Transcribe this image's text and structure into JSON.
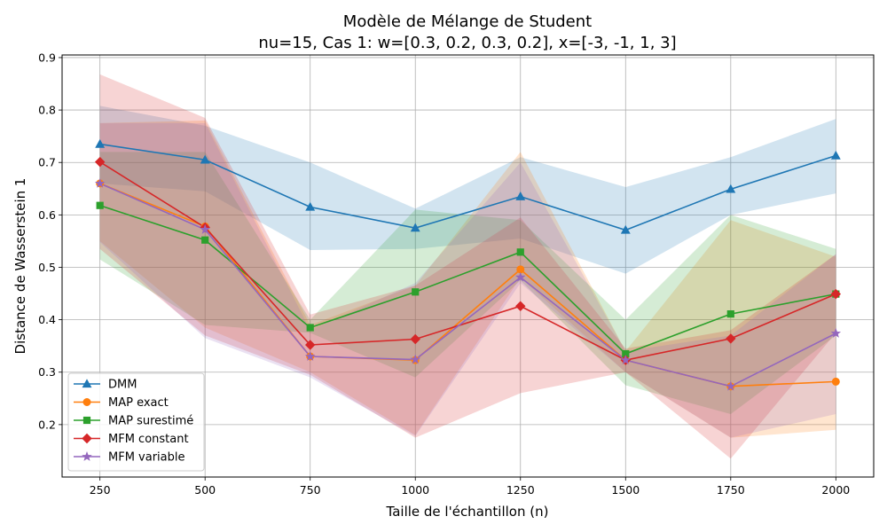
{
  "chart_data": {
    "type": "line",
    "title": "Modèle de Mélange de Student",
    "subtitle": "nu=15, Cas 1: w=[0.3, 0.2, 0.3, 0.2], x=[-3, -1, 1, 3]",
    "xlabel": "Taille de l'échantillon (n)",
    "ylabel": "Distance de Wasserstein 1",
    "x": [
      250,
      500,
      750,
      1000,
      1250,
      1500,
      1750,
      2000
    ],
    "xticks": [
      "250",
      "500",
      "750",
      "1000",
      "1250",
      "1500",
      "1750",
      "2000"
    ],
    "yticks": [
      "0.2",
      "0.3",
      "0.4",
      "0.5",
      "0.6",
      "0.7",
      "0.8",
      "0.9"
    ],
    "xlim": [
      160,
      2090
    ],
    "ylim": [
      0.1,
      0.905
    ],
    "grid": true,
    "legend_position": "lower-left",
    "series": [
      {
        "name": "DMM",
        "color": "#1f77b4",
        "marker": "triangle",
        "values": [
          0.735,
          0.705,
          0.615,
          0.575,
          0.635,
          0.571,
          0.649,
          0.713
        ],
        "band_upper": [
          0.808,
          0.77,
          0.7,
          0.612,
          0.71,
          0.653,
          0.71,
          0.783
        ],
        "band_lower": [
          0.66,
          0.645,
          0.533,
          0.535,
          0.555,
          0.488,
          0.6,
          0.641
        ]
      },
      {
        "name": "MAP exact",
        "color": "#ff7f0e",
        "marker": "circle",
        "values": [
          0.66,
          0.578,
          0.33,
          0.323,
          0.496,
          0.323,
          0.273,
          0.282
        ],
        "band_upper": [
          0.775,
          0.78,
          0.39,
          0.465,
          0.72,
          0.34,
          0.59,
          0.52
        ],
        "band_lower": [
          0.55,
          0.385,
          0.3,
          0.18,
          0.48,
          0.3,
          0.175,
          0.19
        ]
      },
      {
        "name": "MAP surestimé",
        "color": "#2ca02c",
        "marker": "square",
        "values": [
          0.618,
          0.552,
          0.385,
          0.453,
          0.529,
          0.335,
          0.411,
          0.449
        ],
        "band_upper": [
          0.72,
          0.72,
          0.4,
          0.61,
          0.59,
          0.4,
          0.6,
          0.535
        ],
        "band_lower": [
          0.515,
          0.39,
          0.375,
          0.29,
          0.475,
          0.275,
          0.22,
          0.37
        ]
      },
      {
        "name": "MFM constant",
        "color": "#d62728",
        "marker": "diamond",
        "values": [
          0.701,
          0.576,
          0.352,
          0.363,
          0.426,
          0.323,
          0.364,
          0.449
        ],
        "band_upper": [
          0.868,
          0.785,
          0.41,
          0.465,
          0.595,
          0.345,
          0.38,
          0.525
        ],
        "band_lower": [
          0.535,
          0.37,
          0.295,
          0.175,
          0.26,
          0.3,
          0.135,
          0.375
        ]
      },
      {
        "name": "MFM variable",
        "color": "#9467bd",
        "marker": "star",
        "values": [
          0.66,
          0.572,
          0.33,
          0.324,
          0.481,
          0.323,
          0.273,
          0.374
        ],
        "band_upper": [
          0.775,
          0.775,
          0.38,
          0.47,
          0.7,
          0.34,
          0.37,
          0.525
        ],
        "band_lower": [
          0.548,
          0.365,
          0.29,
          0.178,
          0.47,
          0.3,
          0.175,
          0.22
        ]
      }
    ]
  }
}
